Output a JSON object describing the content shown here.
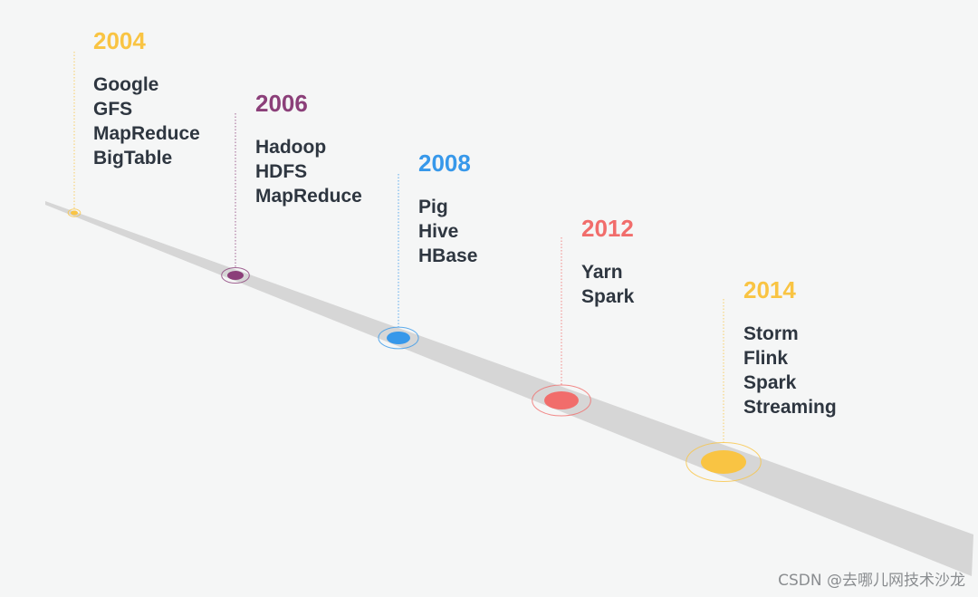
{
  "milestones": [
    {
      "year": "2004",
      "color": "#f9c443",
      "items": [
        "Google",
        "GFS",
        "MapReduce",
        "BigTable"
      ]
    },
    {
      "year": "2006",
      "color": "#8b3f79",
      "items": [
        "Hadoop",
        "HDFS",
        "MapReduce"
      ]
    },
    {
      "year": "2008",
      "color": "#3798ea",
      "items": [
        "Pig",
        "Hive",
        "HBase"
      ]
    },
    {
      "year": "2012",
      "color": "#f16d6b",
      "items": [
        "Yarn",
        "Spark"
      ]
    },
    {
      "year": "2014",
      "color": "#f9c443",
      "items": [
        "Storm",
        "Flink",
        "Spark",
        "Streaming"
      ]
    }
  ],
  "watermark": "CSDN @去哪儿网技术沙龙"
}
